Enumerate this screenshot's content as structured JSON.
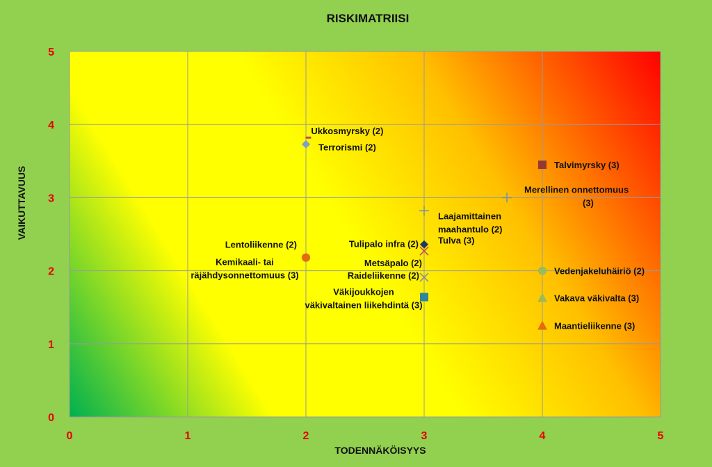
{
  "colors": {
    "page_background": "#92d050",
    "tick_label": "#e60000",
    "gridline": "#9a9a9a",
    "gradient": [
      "#00b050",
      "#ffff00",
      "#ffff00",
      "#ffc000",
      "#ff0000"
    ]
  },
  "chart_data": {
    "type": "scatter",
    "title": "RISKIMATRIISI",
    "xlabel": "TODENNÄKÖISYYS",
    "ylabel": "VAIKUTTAVUUS",
    "xlim": [
      0,
      5
    ],
    "ylim": [
      0,
      5
    ],
    "xticks": [
      "0",
      "1",
      "2",
      "3",
      "4",
      "5"
    ],
    "yticks": [
      "0",
      "1",
      "2",
      "3",
      "4",
      "5"
    ],
    "grid": true,
    "legend": "none",
    "background": "diagonal gradient: green (bottom-left) to yellow to orange to red (top-right)",
    "points": [
      {
        "label": "Ukkosmyrsky (2)",
        "x": 2.02,
        "y": 3.82,
        "marker": "dash",
        "color": "#c0504d"
      },
      {
        "label": "Terrorismi (2)",
        "x": 2.0,
        "y": 3.73,
        "marker": "diamond",
        "color": "#7f9fc8"
      },
      {
        "label": "Talvimyrsky (3)",
        "x": 4.0,
        "y": 3.45,
        "marker": "square",
        "color": "#953735"
      },
      {
        "label": "Merellinen onnettomuus (3)",
        "x": 3.7,
        "y": 3.0,
        "marker": "plus",
        "color": "#7f8fa6"
      },
      {
        "label": "Laajamittainen maahantulo (2)",
        "x": 3.0,
        "y": 2.82,
        "marker": "plus",
        "color": "#7f8fa6"
      },
      {
        "label": "Tulipalo infra (2)",
        "x": 3.0,
        "y": 2.36,
        "marker": "diamond",
        "color": "#1f3864"
      },
      {
        "label": "Tulva (3)",
        "x": 3.0,
        "y": 2.36,
        "marker": "none",
        "color": "#111111"
      },
      {
        "label": "Metsäpalo (2)",
        "x": 3.0,
        "y": 2.27,
        "marker": "x",
        "color": "#c0504d"
      },
      {
        "label": "Raideliikenne (2)",
        "x": 3.0,
        "y": 1.91,
        "marker": "x",
        "color": "#8c8ca0"
      },
      {
        "label": "Väkijoukkojen väkivaltainen liikehdintä (3)",
        "x": 3.0,
        "y": 1.64,
        "marker": "square",
        "color": "#31859c"
      },
      {
        "label": "Lentoliikenne (2)",
        "x": 2.0,
        "y": 2.18,
        "marker": "circle",
        "color": "#948a54"
      },
      {
        "label": "Kemikaali- tai räjähdysonnettomuus (3)",
        "x": 2.0,
        "y": 2.18,
        "marker": "circle",
        "color": "#e46c0a"
      },
      {
        "label": "Vedenjakeluhäiriö (2)",
        "x": 4.0,
        "y": 2.0,
        "marker": "circle",
        "color": "#9bbb59"
      },
      {
        "label": "Vakava väkivalta (3)",
        "x": 4.0,
        "y": 1.63,
        "marker": "triangle",
        "color": "#9bbb59"
      },
      {
        "label": "Maantieliikenne (3)",
        "x": 4.0,
        "y": 1.25,
        "marker": "triangle",
        "color": "#e46c0a"
      }
    ]
  }
}
